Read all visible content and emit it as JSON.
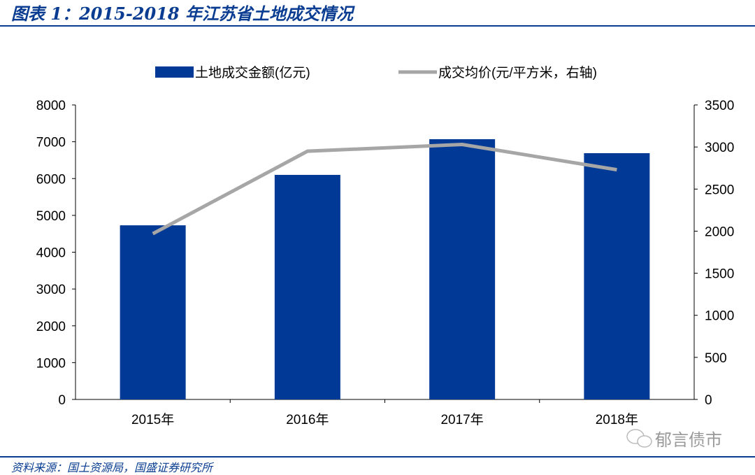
{
  "title": "图表 1：2015-2018 年江苏省土地成交情况",
  "source": "资料来源：国土资源局，国盛证券研究所",
  "watermark": "郁言债市",
  "chart_data": {
    "type": "bar+line",
    "categories": [
      "2015年",
      "2016年",
      "2017年",
      "2018年"
    ],
    "series": [
      {
        "name": "土地成交金额(亿元)",
        "type": "bar",
        "axis": "left",
        "color": "#003A96",
        "values": [
          4730,
          6100,
          7070,
          6690
        ]
      },
      {
        "name": "成交均价(元/平方米，右轴)",
        "type": "line",
        "axis": "right",
        "color": "#A6A6A6",
        "values": [
          1970,
          2950,
          3030,
          2730
        ]
      }
    ],
    "ylim_left": [
      0,
      8000
    ],
    "yticks_left": [
      "0",
      "1000",
      "2000",
      "3000",
      "4000",
      "5000",
      "6000",
      "7000",
      "8000"
    ],
    "ylim_right": [
      0,
      3500
    ],
    "yticks_right": [
      "0",
      "500",
      "1000",
      "1500",
      "2000",
      "2500",
      "3000",
      "3500"
    ],
    "legend": "top",
    "grid": false
  }
}
